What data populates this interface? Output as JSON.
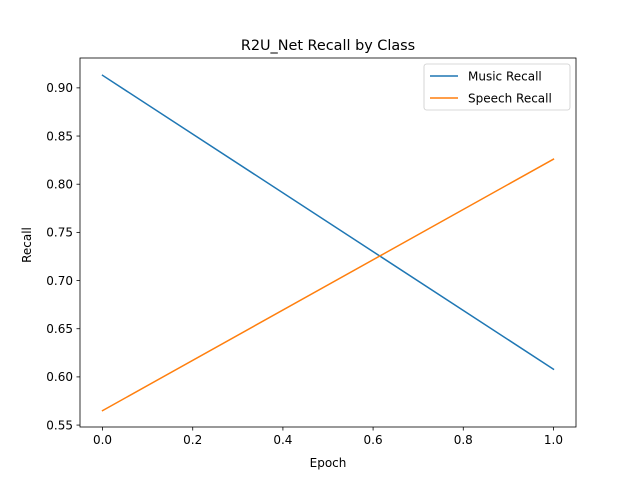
{
  "chart_data": {
    "type": "line",
    "title": "R2U_Net Recall by Class",
    "xlabel": "Epoch",
    "ylabel": "Recall",
    "xlim": [
      -0.05,
      1.05
    ],
    "ylim": [
      0.548,
      0.931
    ],
    "xticks": [
      0.0,
      0.2,
      0.4,
      0.6,
      0.8,
      1.0
    ],
    "xtick_labels": [
      "0.0",
      "0.2",
      "0.4",
      "0.6",
      "0.8",
      "1.0"
    ],
    "yticks": [
      0.55,
      0.6,
      0.65,
      0.7,
      0.75,
      0.8,
      0.85,
      0.9
    ],
    "ytick_labels": [
      "0.55",
      "0.60",
      "0.65",
      "0.70",
      "0.75",
      "0.80",
      "0.85",
      "0.90"
    ],
    "grid": false,
    "legend_position": "upper right",
    "series": [
      {
        "name": "Music Recall",
        "color": "#1f77b4",
        "x": [
          0,
          1
        ],
        "y": [
          0.913,
          0.608
        ]
      },
      {
        "name": "Speech Recall",
        "color": "#ff7f0e",
        "x": [
          0,
          1
        ],
        "y": [
          0.565,
          0.826
        ]
      }
    ]
  }
}
